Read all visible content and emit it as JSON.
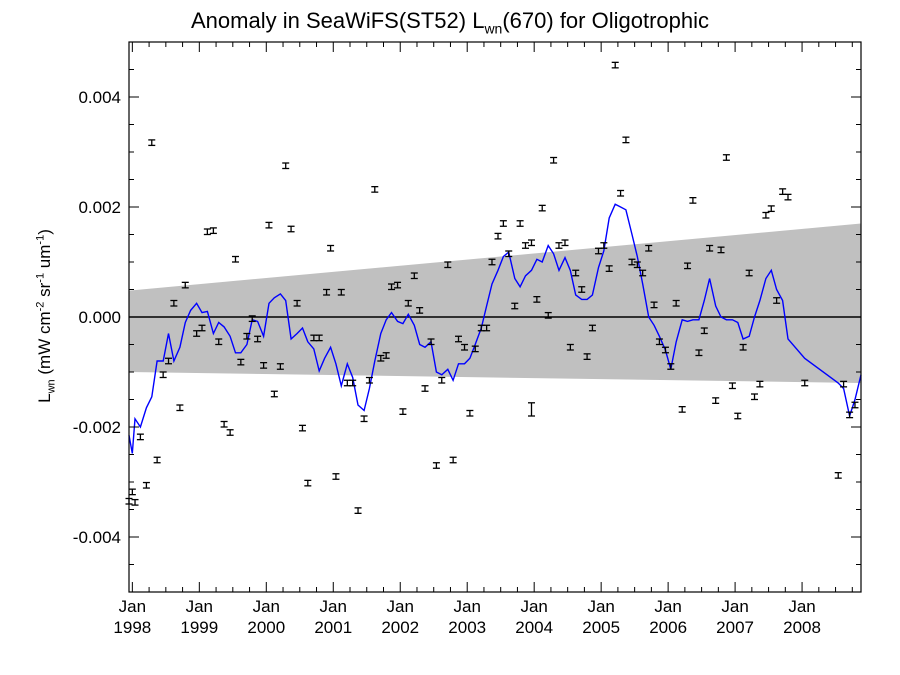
{
  "chart_data": {
    "type": "scatter",
    "title_parts": {
      "prefix": "Anomaly in SeaWiFS(ST52) L",
      "sub": "wn",
      "suffix": "(670) for Oligotrophic"
    },
    "ylabel_parts": {
      "main": "L",
      "main_sub": "wn",
      "units_prefix": " (mW cm",
      "exp1": "-2",
      "unit2": " sr",
      "exp2": "-1",
      "unit3": " um",
      "exp3": "-1",
      "close": ")"
    },
    "xlim": [
      1997.95,
      2008.88
    ],
    "ylim": [
      -0.005,
      0.005
    ],
    "yticks": [
      {
        "value": 0.004,
        "label": "0.004"
      },
      {
        "value": 0.002,
        "label": "0.002"
      },
      {
        "value": 0.0,
        "label": "0.000"
      },
      {
        "value": -0.002,
        "label": "-0.002"
      },
      {
        "value": -0.004,
        "label": "-0.004"
      }
    ],
    "xticks": [
      {
        "value": 1998,
        "month": "Jan",
        "year": "1998"
      },
      {
        "value": 1999,
        "month": "Jan",
        "year": "1999"
      },
      {
        "value": 2000,
        "month": "Jan",
        "year": "2000"
      },
      {
        "value": 2001,
        "month": "Jan",
        "year": "2001"
      },
      {
        "value": 2002,
        "month": "Jan",
        "year": "2002"
      },
      {
        "value": 2003,
        "month": "Jan",
        "year": "2003"
      },
      {
        "value": 2004,
        "month": "Jan",
        "year": "2004"
      },
      {
        "value": 2005,
        "month": "Jan",
        "year": "2005"
      },
      {
        "value": 2006,
        "month": "Jan",
        "year": "2006"
      },
      {
        "value": 2007,
        "month": "Jan",
        "year": "2007"
      },
      {
        "value": 2008,
        "month": "Jan",
        "year": "2008"
      }
    ],
    "zero_line": 0.0,
    "band": {
      "upper": [
        [
          1997.95,
          0.00048
        ],
        [
          2008.88,
          0.0017
        ]
      ],
      "lower": [
        [
          1997.95,
          -0.001
        ],
        [
          2008.88,
          -0.0012
        ]
      ],
      "color": "#c0c0c0"
    },
    "points": [
      [
        1997.95,
        -0.00335
      ],
      [
        1998.0,
        -0.00318
      ],
      [
        1998.04,
        -0.00337
      ],
      [
        1998.12,
        -0.00218
      ],
      [
        1998.21,
        -0.00306
      ],
      [
        1998.29,
        0.00317
      ],
      [
        1998.37,
        -0.0026
      ],
      [
        1998.46,
        -0.00105
      ],
      [
        1998.54,
        -0.0008
      ],
      [
        1998.62,
        0.00025
      ],
      [
        1998.71,
        -0.00165
      ],
      [
        1998.79,
        0.00058
      ],
      [
        1998.96,
        -0.0003
      ],
      [
        1999.04,
        -0.0002
      ],
      [
        1999.12,
        0.00155
      ],
      [
        1999.21,
        0.00157
      ],
      [
        1999.29,
        -0.00045
      ],
      [
        1999.37,
        -0.00195
      ],
      [
        1999.46,
        -0.0021
      ],
      [
        1999.54,
        0.00105
      ],
      [
        1999.62,
        -0.00082
      ],
      [
        1999.71,
        -0.00035
      ],
      [
        1999.79,
        -3e-05
      ],
      [
        1999.87,
        -0.0004
      ],
      [
        1999.96,
        -0.00088
      ],
      [
        2000.04,
        0.00167
      ],
      [
        2000.12,
        -0.0014
      ],
      [
        2000.21,
        -0.0009
      ],
      [
        2000.29,
        0.00275
      ],
      [
        2000.37,
        0.0016
      ],
      [
        2000.46,
        0.00025
      ],
      [
        2000.54,
        -0.00202
      ],
      [
        2000.62,
        -0.00302
      ],
      [
        2000.71,
        -0.00038
      ],
      [
        2000.79,
        -0.00038
      ],
      [
        2000.9,
        0.00045
      ],
      [
        2000.96,
        0.00125
      ],
      [
        2001.04,
        -0.0029
      ],
      [
        2001.12,
        0.00045
      ],
      [
        2001.21,
        -0.0012
      ],
      [
        2001.29,
        -0.0012
      ],
      [
        2001.37,
        -0.00352
      ],
      [
        2001.46,
        -0.00185
      ],
      [
        2001.54,
        -0.00115
      ],
      [
        2001.62,
        0.00232
      ],
      [
        2001.71,
        -0.00075
      ],
      [
        2001.79,
        -0.0007
      ],
      [
        2001.87,
        0.00055
      ],
      [
        2001.96,
        0.00058
      ],
      [
        2002.04,
        -0.00172
      ],
      [
        2002.12,
        0.00025
      ],
      [
        2002.21,
        0.00075
      ],
      [
        2002.29,
        0.00012
      ],
      [
        2002.37,
        -0.0013
      ],
      [
        2002.46,
        -0.00045
      ],
      [
        2002.54,
        -0.0027
      ],
      [
        2002.62,
        -0.00115
      ],
      [
        2002.71,
        0.00095
      ],
      [
        2002.79,
        -0.0026
      ],
      [
        2002.87,
        -0.0004
      ],
      [
        2002.96,
        -0.00055
      ],
      [
        2003.04,
        -0.00175
      ],
      [
        2003.12,
        -0.00058
      ],
      [
        2003.21,
        -0.0002
      ],
      [
        2003.29,
        -0.0002
      ],
      [
        2003.37,
        0.001
      ],
      [
        2003.46,
        0.00147
      ],
      [
        2003.54,
        0.0017
      ],
      [
        2003.62,
        0.00115
      ],
      [
        2003.71,
        0.0002
      ],
      [
        2003.79,
        0.0017
      ],
      [
        2003.87,
        0.0013
      ],
      [
        2003.96,
        0.00135
      ],
      [
        2004.04,
        0.00032
      ],
      [
        2004.12,
        0.00198
      ],
      [
        2004.21,
        3e-05
      ],
      [
        2004.29,
        0.00285
      ],
      [
        2004.37,
        0.0013
      ],
      [
        2004.46,
        0.00135
      ],
      [
        2004.54,
        -0.00055
      ],
      [
        2004.62,
        0.0008
      ],
      [
        2004.71,
        0.0005
      ],
      [
        2004.79,
        -0.00072
      ],
      [
        2004.87,
        -0.0002
      ],
      [
        2004.96,
        0.0012
      ],
      [
        2005.04,
        0.0013
      ],
      [
        2005.12,
        0.00088
      ],
      [
        2005.21,
        0.00458
      ],
      [
        2005.29,
        0.00225
      ],
      [
        2005.37,
        0.00322
      ],
      [
        2005.46,
        0.001
      ],
      [
        2005.54,
        0.00095
      ],
      [
        2005.62,
        0.0008
      ],
      [
        2005.71,
        0.00125
      ],
      [
        2005.79,
        0.00022
      ],
      [
        2005.87,
        -0.00045
      ],
      [
        2005.96,
        -0.0006
      ],
      [
        2006.04,
        -0.0009
      ],
      [
        2006.12,
        0.00025
      ],
      [
        2006.21,
        -0.00168
      ],
      [
        2006.29,
        0.00093
      ],
      [
        2006.37,
        0.00212
      ],
      [
        2006.46,
        -0.00065
      ],
      [
        2006.54,
        -0.00025
      ],
      [
        2006.62,
        0.00125
      ],
      [
        2006.71,
        -0.00152
      ],
      [
        2006.79,
        0.00122
      ],
      [
        2006.87,
        0.0029
      ],
      [
        2006.96,
        -0.00125
      ],
      [
        2007.04,
        -0.0018
      ],
      [
        2007.12,
        -0.00055
      ],
      [
        2007.21,
        0.0008
      ],
      [
        2007.29,
        -0.00145
      ],
      [
        2007.37,
        -0.00122
      ],
      [
        2007.46,
        0.00185
      ],
      [
        2007.54,
        0.00197
      ],
      [
        2007.62,
        0.0003
      ],
      [
        2007.71,
        0.00228
      ],
      [
        2007.79,
        0.00218
      ],
      [
        2008.04,
        -0.0012
      ],
      [
        2008.54,
        -0.00288
      ],
      [
        2008.62,
        -0.00122
      ],
      [
        2008.71,
        -0.00178
      ],
      [
        2008.79,
        -0.0016
      ]
    ],
    "point_error": 5e-05,
    "large_error_points": [
      [
        2003.96,
        -0.00168,
        0.00012
      ]
    ],
    "line": [
      [
        1997.95,
        -0.00215
      ],
      [
        1998.0,
        -0.00248
      ],
      [
        1998.04,
        -0.00185
      ],
      [
        1998.12,
        -0.002
      ],
      [
        1998.21,
        -0.00165
      ],
      [
        1998.29,
        -0.00145
      ],
      [
        1998.37,
        -0.0008
      ],
      [
        1998.46,
        -0.0008
      ],
      [
        1998.54,
        -0.0003
      ],
      [
        1998.62,
        -0.0008
      ],
      [
        1998.71,
        -0.00055
      ],
      [
        1998.79,
        -0.0001
      ],
      [
        1998.87,
        0.00012
      ],
      [
        1998.96,
        0.00025
      ],
      [
        1999.04,
        8e-05
      ],
      [
        1999.12,
        0.0001
      ],
      [
        1999.21,
        -0.0003
      ],
      [
        1999.29,
        -0.0001
      ],
      [
        1999.37,
        -0.00018
      ],
      [
        1999.46,
        -0.00035
      ],
      [
        1999.54,
        -0.00065
      ],
      [
        1999.62,
        -0.00065
      ],
      [
        1999.71,
        -0.0005
      ],
      [
        1999.79,
        -5e-05
      ],
      [
        1999.87,
        -8e-05
      ],
      [
        1999.96,
        -0.00035
      ],
      [
        2000.04,
        0.00025
      ],
      [
        2000.12,
        0.00035
      ],
      [
        2000.21,
        0.00042
      ],
      [
        2000.29,
        0.0003
      ],
      [
        2000.37,
        -0.0004
      ],
      [
        2000.46,
        -0.0003
      ],
      [
        2000.54,
        -0.0002
      ],
      [
        2000.62,
        -0.00045
      ],
      [
        2000.71,
        -0.00058
      ],
      [
        2000.79,
        -0.00098
      ],
      [
        2000.87,
        -0.00075
      ],
      [
        2000.96,
        -0.00055
      ],
      [
        2001.04,
        -0.00085
      ],
      [
        2001.12,
        -0.00125
      ],
      [
        2001.21,
        -0.00085
      ],
      [
        2001.29,
        -0.0011
      ],
      [
        2001.37,
        -0.0016
      ],
      [
        2001.46,
        -0.0017
      ],
      [
        2001.54,
        -0.0013
      ],
      [
        2001.62,
        -0.0008
      ],
      [
        2001.71,
        -0.0003
      ],
      [
        2001.79,
        -5e-05
      ],
      [
        2001.87,
        8e-05
      ],
      [
        2001.96,
        -8e-05
      ],
      [
        2002.04,
        -0.00012
      ],
      [
        2002.12,
        5e-05
      ],
      [
        2002.21,
        -0.00015
      ],
      [
        2002.29,
        -0.0005
      ],
      [
        2002.37,
        -0.00055
      ],
      [
        2002.46,
        -0.00045
      ],
      [
        2002.54,
        -0.001
      ],
      [
        2002.62,
        -0.00105
      ],
      [
        2002.71,
        -0.00095
      ],
      [
        2002.79,
        -0.00115
      ],
      [
        2002.87,
        -0.00085
      ],
      [
        2002.96,
        -0.00085
      ],
      [
        2003.04,
        -0.00075
      ],
      [
        2003.12,
        -0.0005
      ],
      [
        2003.21,
        -0.0002
      ],
      [
        2003.29,
        0.0002
      ],
      [
        2003.37,
        0.0006
      ],
      [
        2003.46,
        0.00085
      ],
      [
        2003.54,
        0.0011
      ],
      [
        2003.62,
        0.00118
      ],
      [
        2003.71,
        0.0007
      ],
      [
        2003.79,
        0.00055
      ],
      [
        2003.87,
        0.00075
      ],
      [
        2003.96,
        0.00085
      ],
      [
        2004.04,
        0.00105
      ],
      [
        2004.12,
        0.001
      ],
      [
        2004.21,
        0.0013
      ],
      [
        2004.29,
        0.00115
      ],
      [
        2004.37,
        0.00085
      ],
      [
        2004.46,
        0.00108
      ],
      [
        2004.54,
        0.00085
      ],
      [
        2004.62,
        0.0004
      ],
      [
        2004.71,
        0.00032
      ],
      [
        2004.79,
        0.00032
      ],
      [
        2004.87,
        0.0004
      ],
      [
        2004.96,
        0.0009
      ],
      [
        2005.04,
        0.0012
      ],
      [
        2005.12,
        0.0018
      ],
      [
        2005.21,
        0.00205
      ],
      [
        2005.29,
        0.002
      ],
      [
        2005.37,
        0.00195
      ],
      [
        2005.46,
        0.0015
      ],
      [
        2005.54,
        0.0011
      ],
      [
        2005.62,
        0.0006
      ],
      [
        2005.71,
        0.0
      ],
      [
        2005.79,
        -0.00015
      ],
      [
        2005.87,
        -0.00035
      ],
      [
        2005.96,
        -0.0006
      ],
      [
        2006.04,
        -0.00095
      ],
      [
        2006.12,
        -0.00045
      ],
      [
        2006.21,
        -5e-05
      ],
      [
        2006.29,
        -8e-05
      ],
      [
        2006.37,
        -5e-05
      ],
      [
        2006.46,
        -5e-05
      ],
      [
        2006.54,
        0.0003
      ],
      [
        2006.62,
        0.0007
      ],
      [
        2006.71,
        0.0002
      ],
      [
        2006.79,
        0.0
      ],
      [
        2006.87,
        -5e-05
      ],
      [
        2006.96,
        -5e-05
      ],
      [
        2007.04,
        -0.0001
      ],
      [
        2007.12,
        -0.0004
      ],
      [
        2007.21,
        -0.00035
      ],
      [
        2007.29,
        0.0
      ],
      [
        2007.37,
        0.0003
      ],
      [
        2007.46,
        0.0007
      ],
      [
        2007.54,
        0.00085
      ],
      [
        2007.62,
        0.0005
      ],
      [
        2007.71,
        0.0003
      ],
      [
        2007.79,
        -0.0004
      ],
      [
        2008.04,
        -0.00075
      ],
      [
        2008.54,
        -0.0012
      ],
      [
        2008.62,
        -0.0013
      ],
      [
        2008.71,
        -0.0018
      ],
      [
        2008.79,
        -0.0015
      ],
      [
        2008.88,
        -0.00105
      ]
    ],
    "line_color": "#0000ff",
    "marker_color": "#000000"
  }
}
